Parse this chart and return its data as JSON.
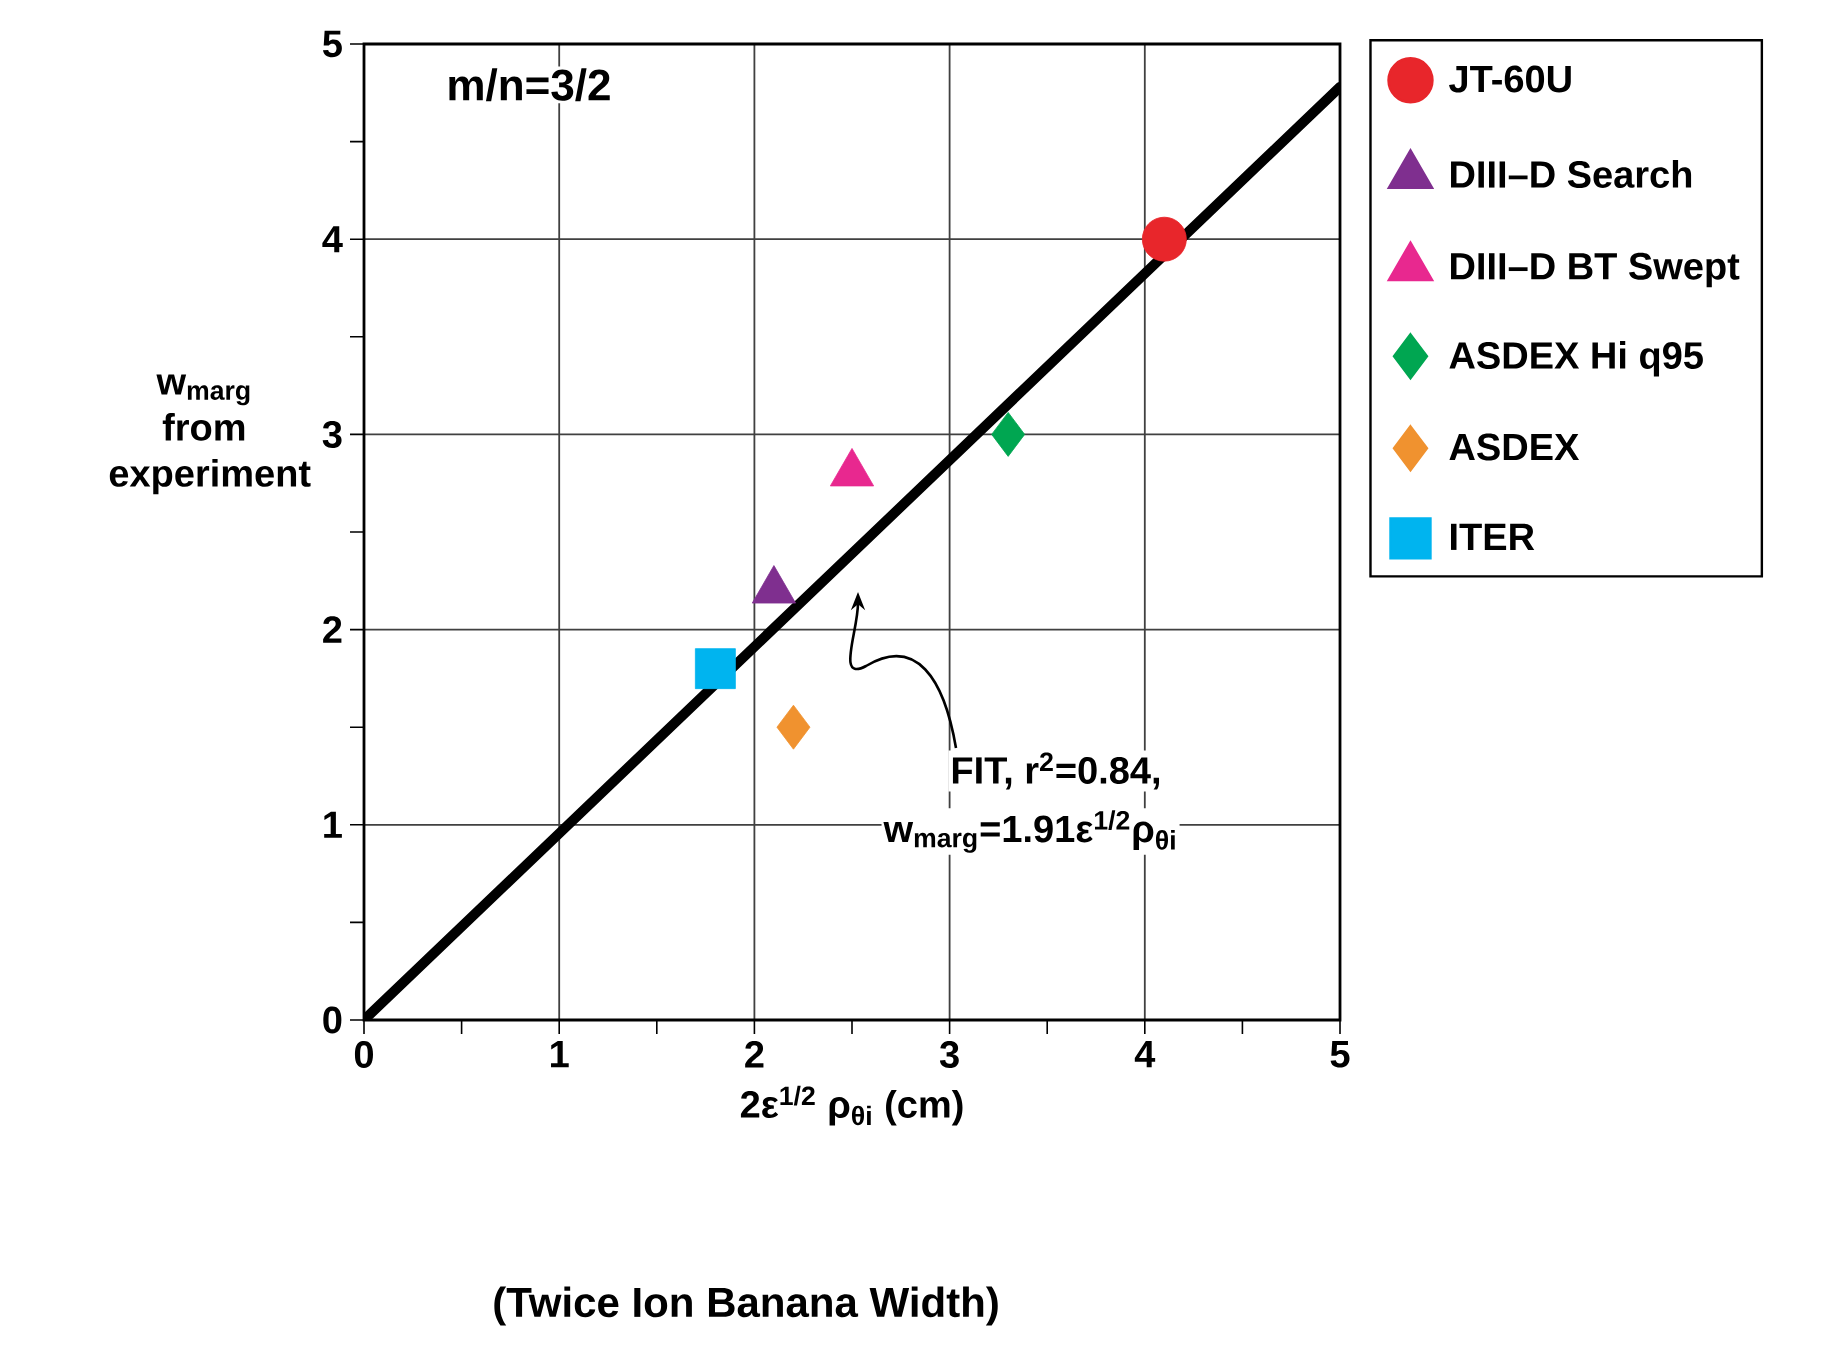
{
  "chart_data": {
    "type": "scatter",
    "xlabel": "2ε$^{1/2}$ ρ$_{θi}$ (cm)",
    "ylabel": "w$_{marg}$ from experiment",
    "xlim": [
      0,
      5
    ],
    "ylim": [
      0,
      5
    ],
    "xticks": [
      0,
      {
        "value": 0.5,
        "label": null
      },
      1,
      {
        "value": 1.5,
        "label": null
      },
      2,
      {
        "value": 2.5,
        "label": null
      },
      3,
      {
        "value": 3.5,
        "label": null
      },
      4,
      {
        "value": 4.5,
        "label": null
      },
      5
    ],
    "yticks": [
      0,
      {
        "value": 0.5,
        "label": null
      },
      1,
      {
        "value": 1.5,
        "label": null
      },
      2,
      {
        "value": 2.5,
        "label": null
      },
      3,
      {
        "value": 3.5,
        "label": null
      },
      4,
      {
        "value": 4.5,
        "label": null
      },
      5
    ],
    "grid": true,
    "legend": "right",
    "series": [
      {
        "name": "JT-60U",
        "color": "#e8262b",
        "marker": "circle",
        "x": [
          4.1
        ],
        "values": [
          4.0
        ]
      },
      {
        "name": "DIII–D Search",
        "color": "#7f2f8f",
        "marker": "triangle",
        "x": [
          2.1
        ],
        "values": [
          2.2
        ]
      },
      {
        "name": "DIII–D BT Swept",
        "color": "#e8288f",
        "marker": "triangle",
        "x": [
          2.5
        ],
        "values": [
          2.8
        ]
      },
      {
        "name": "ASDEX Hi q95",
        "color": "#00a651",
        "marker": "diamond",
        "x": [
          3.3
        ],
        "values": [
          3.0
        ]
      },
      {
        "name": "ASDEX",
        "color": "#f0922f",
        "marker": "diamond",
        "x": [
          2.2
        ],
        "values": [
          1.5
        ]
      },
      {
        "name": "ITER",
        "color": "#00b4ef",
        "marker": "square",
        "x": [
          1.8
        ],
        "values": [
          1.8
        ]
      },
      {
        "type": "line",
        "color": "#000000",
        "marker": "none",
        "x": [
          0,
          5
        ],
        "values": [
          0,
          4.78
        ]
      }
    ],
    "annotations": [
      "m/n=3/2",
      "FIT, r$^{2}$=0.84,",
      "w$_{marg}$=1.91ε$^{1/2}$ρ$_{θi}$",
      "(Twice Ion Banana Width)"
    ]
  }
}
